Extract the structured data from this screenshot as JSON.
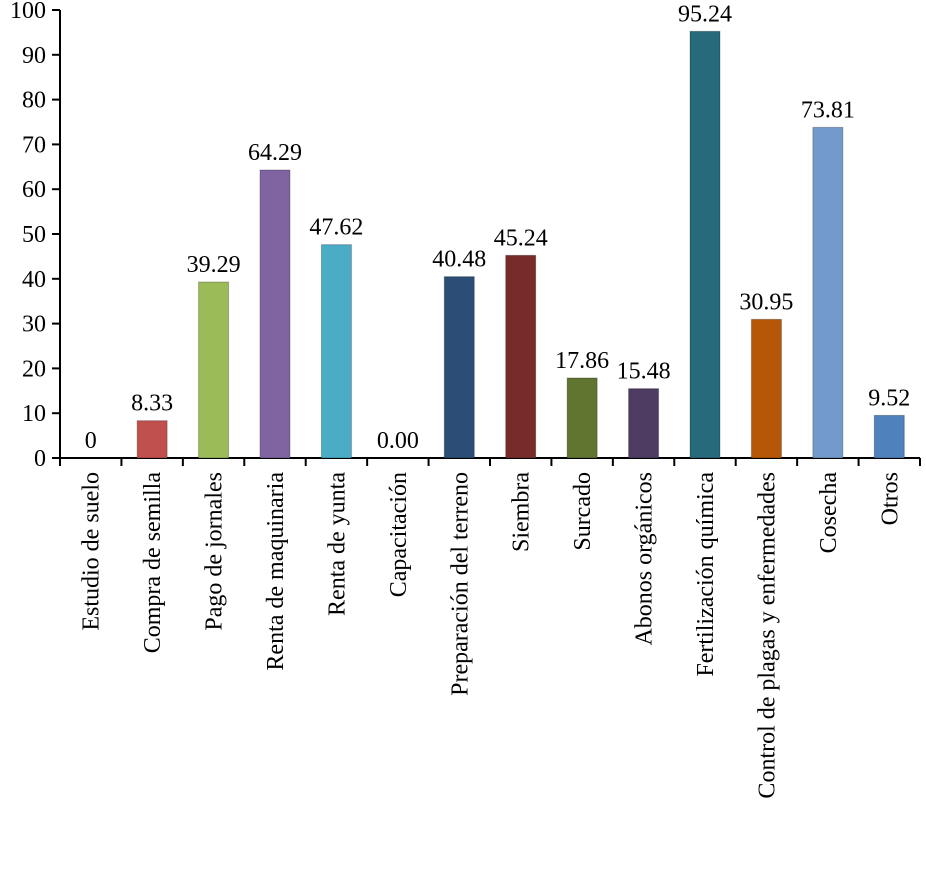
{
  "chart_data": {
    "type": "bar",
    "title": "",
    "xlabel": "",
    "ylabel": "",
    "ylim": [
      0,
      100
    ],
    "yticks": [
      0,
      10,
      20,
      30,
      40,
      50,
      60,
      70,
      80,
      90,
      100
    ],
    "grid": false,
    "legend": "none",
    "categories": [
      "Estudio de suelo",
      "Compra de semilla",
      "Pago de jornales",
      "Renta de maquinaria",
      "Renta de yunta",
      "Capacitación",
      "Preparación del terreno",
      "Siembra",
      "Surcado",
      "Abonos orgánicos",
      "Fertilización química",
      "Control de plagas y enfermedades",
      "Cosecha",
      "Otros"
    ],
    "values": [
      0,
      8.33,
      39.29,
      64.29,
      47.62,
      0.0,
      40.48,
      45.24,
      17.86,
      15.48,
      95.24,
      30.95,
      73.81,
      9.52
    ],
    "data_labels": [
      "0",
      "8.33",
      "39.29",
      "64.29",
      "47.62",
      "0.00",
      "40.48",
      "45.24",
      "17.86",
      "15.48",
      "95.24",
      "30.95",
      "73.81",
      "9.52"
    ],
    "colors": [
      "#4f81bd",
      "#c0504d",
      "#9bbb59",
      "#8064a2",
      "#4bacc6",
      "#f79646",
      "#2c4d75",
      "#772c2a",
      "#5f7530",
      "#4d3b62",
      "#276a7c",
      "#b65708",
      "#729aca",
      "#4f81bd"
    ]
  }
}
